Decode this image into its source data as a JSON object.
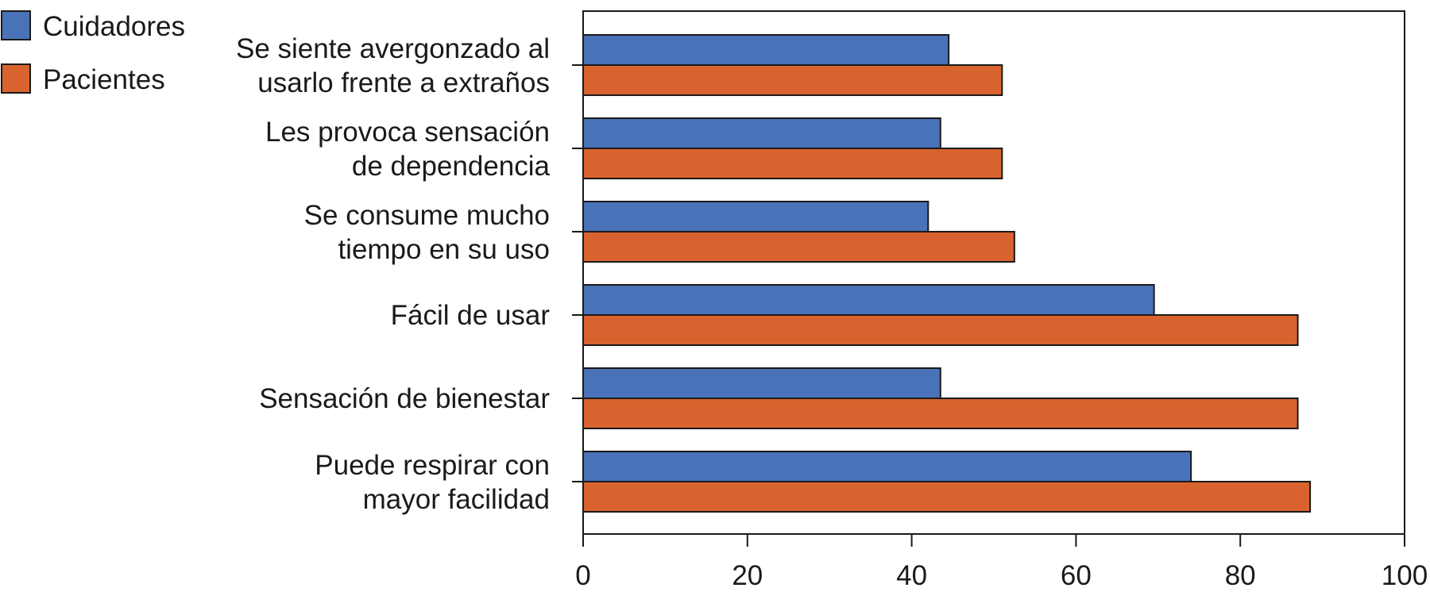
{
  "chart_data": {
    "type": "bar",
    "orientation": "horizontal",
    "title": "",
    "xlabel": "",
    "ylabel": "",
    "xlim": [
      0,
      100
    ],
    "xticks": [
      0,
      20,
      40,
      60,
      80,
      100
    ],
    "grid": false,
    "legend_position": "top-left",
    "categories": [
      [
        "Se siente avergonzado al",
        "usarlo frente a extraños"
      ],
      [
        "Les provoca sensación",
        "de dependencia"
      ],
      [
        "Se consume mucho",
        "tiempo en su uso"
      ],
      [
        "Fácil de usar"
      ],
      [
        "Sensación de bienestar"
      ],
      [
        "Puede respirar con",
        "mayor facilidad"
      ]
    ],
    "series": [
      {
        "name": "Cuidadores",
        "color": "#4a72b8",
        "values": [
          44.5,
          43.5,
          42,
          69.5,
          43.5,
          74
        ]
      },
      {
        "name": "Pacientes",
        "color": "#d9632e",
        "values": [
          51,
          51,
          52.5,
          87,
          87,
          88.5
        ]
      }
    ]
  }
}
